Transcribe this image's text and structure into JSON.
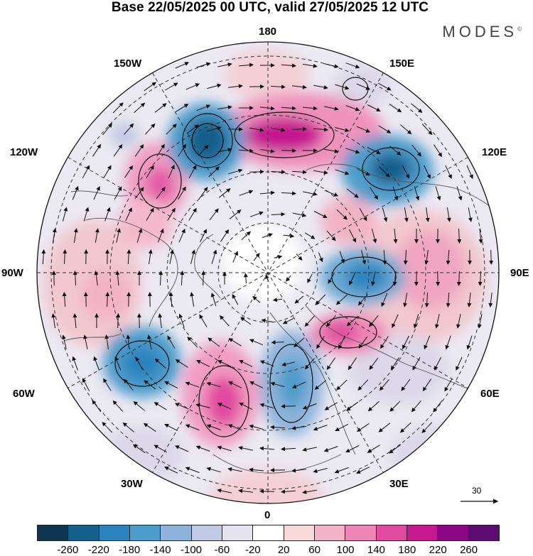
{
  "title": "Base 22/05/2025 00 UTC, valid 27/05/2025 12 UTC",
  "brand": "MODES",
  "brand_mark": "©",
  "longitude_labels": {
    "top": "180",
    "top_left": "150W",
    "top_right": "150E",
    "upper_left": "120W",
    "upper_right": "120E",
    "left": "90W",
    "right": "90E",
    "lower_left": "60W",
    "lower_right": "60E",
    "bottom_left": "30W",
    "bottom_right": "30E",
    "bottom": "0"
  },
  "reference_vector": {
    "label": "30",
    "icon": "arrow-right-icon"
  },
  "colorbar": {
    "tick_labels": [
      "-260",
      "-220",
      "-180",
      "-140",
      "-100",
      "-60",
      "-20",
      "20",
      "60",
      "100",
      "140",
      "180",
      "220",
      "260"
    ],
    "colors": [
      "#0f3550",
      "#155f8d",
      "#2a83bd",
      "#4e9ccb",
      "#8db3da",
      "#c2c9e4",
      "#e6e3f0",
      "#ffffff",
      "#f9d9da",
      "#f3b2c6",
      "#ee86b5",
      "#e04a9f",
      "#c41990",
      "#8a0884",
      "#5c0d6f"
    ]
  },
  "map": {
    "projection": "north-polar-stereographic",
    "features": [
      "coastlines-icon",
      "latitude-circles",
      "meridians",
      "wind-vectors",
      "anomaly-shading"
    ]
  }
}
